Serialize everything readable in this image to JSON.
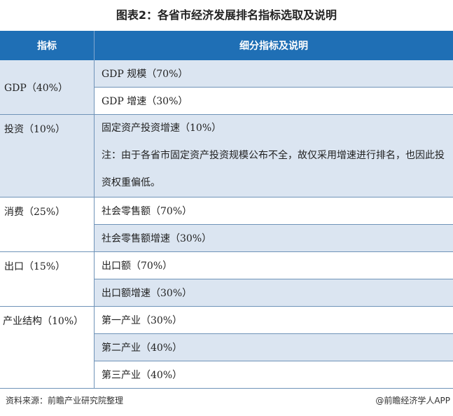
{
  "title": "图表2：各省市经济发展排名指标选取及说明",
  "header": {
    "col1": "指标",
    "col2": "细分指标及说明"
  },
  "rows": [
    {
      "indicator": "GDP（40%）",
      "items": [
        "GDP 规模（70%）",
        "GDP 增速（30%）"
      ]
    },
    {
      "indicator": "投资（10%）",
      "items": [
        "固定资产投资增速（10%）"
      ],
      "note": "注：由于各省市固定资产投资规模公布不全，故仅采用增速进行排名，也因此投资权重偏低。"
    },
    {
      "indicator": "消费（25%）",
      "items": [
        "社会零售额（70%）",
        "社会零售额增速（30%）"
      ]
    },
    {
      "indicator": "出口（15%）",
      "items": [
        "出口额（70%）",
        "出口额增速（30%）"
      ]
    },
    {
      "indicator": "产业结构（10%）",
      "items": [
        "第一产业（30%）",
        "第二产业（40%）",
        "第三产业（40%）"
      ]
    }
  ],
  "footer": {
    "source": "资料来源：前瞻产业研究院整理",
    "credit": "@前瞻经济学人APP"
  },
  "colors": {
    "header": "#1f6fb5",
    "band": "#dbe5f1"
  }
}
